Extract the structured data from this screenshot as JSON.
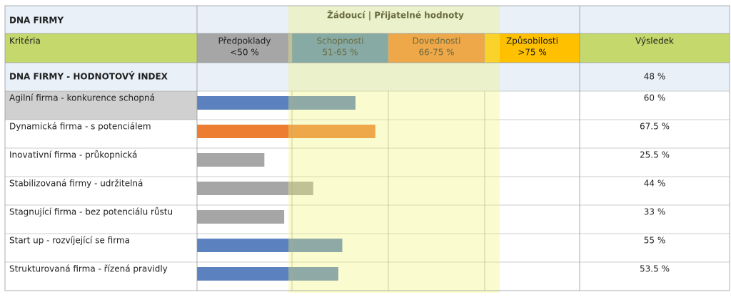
{
  "header": {
    "title": "DNA FIRMY",
    "band_title": "Žádoucí | Přijatelné hodnoty"
  },
  "columns": {
    "criteria": "Kritéria",
    "result": "Výsledek",
    "levels": [
      {
        "name": "Předpoklady",
        "range": "<50 %",
        "color": "#a6a6a6"
      },
      {
        "name": "Schopnosti",
        "range": "51-65 %",
        "color": "#4f81bd"
      },
      {
        "name": "Dovednosti",
        "range": "66-75 %",
        "color": "#ed7d31"
      },
      {
        "name": "Způsobilosti",
        "range": ">75 %",
        "color": "#ffc000"
      }
    ]
  },
  "index": {
    "label": "DNA FIRMY - HODNOTOVÝ INDEX",
    "value_label": "48 %"
  },
  "chart_data": {
    "type": "bar",
    "categories": [
      "Agilní firma - konkurence schopná",
      "Dynamická firma - s potenciálem",
      "Inovativní firma - průkopnická",
      "Stabilizovaná firmy - udržitelná",
      "Stagnující firma - bez potenciálu růstu",
      "Start up - rozvíjející se firma",
      "Strukturovaná firma - řízená pravidly"
    ],
    "values": [
      60,
      67.5,
      25.5,
      44,
      33,
      55,
      53.5
    ],
    "value_labels": [
      "60 %",
      "67.5 %",
      "25.5 %",
      "44 %",
      "33 %",
      "55 %",
      "53.5 %"
    ],
    "colors": [
      "#5b82bf",
      "#ed7d31",
      "#a6a6a6",
      "#a6a6a6",
      "#a6a6a6",
      "#5b82bf",
      "#5b82bf"
    ]
  }
}
